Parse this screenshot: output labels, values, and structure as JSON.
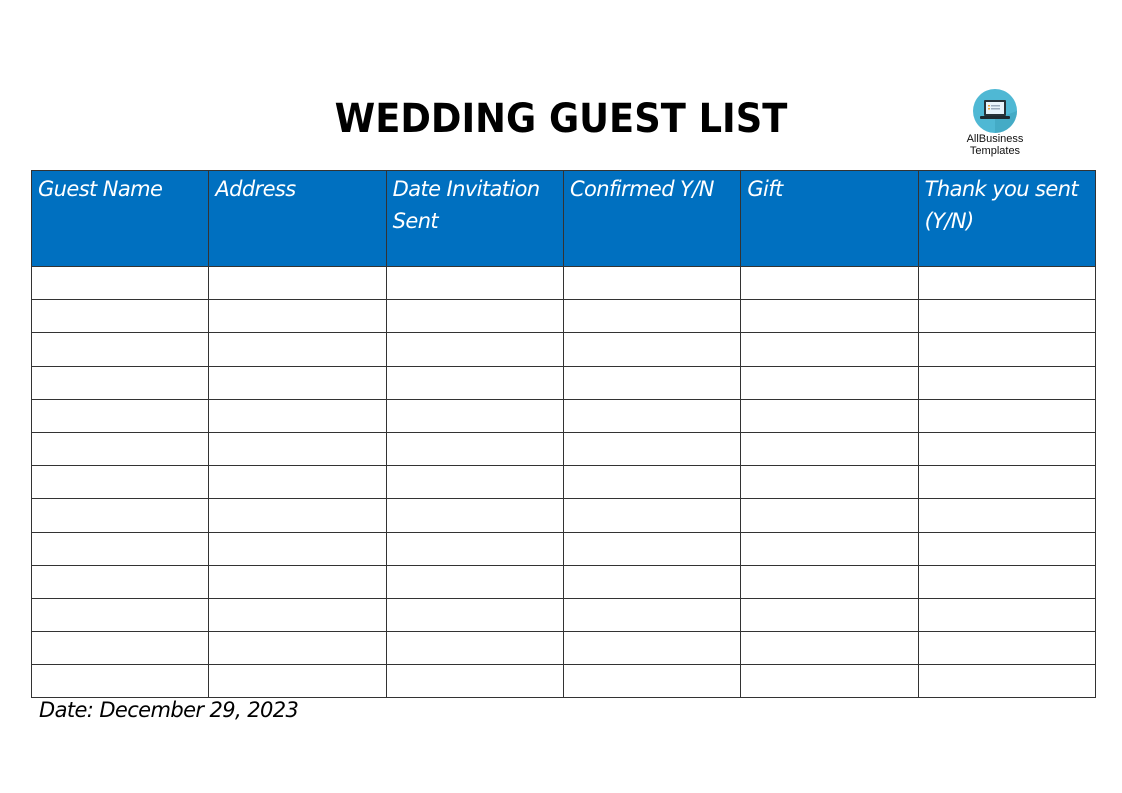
{
  "title": "WEDDING GUEST LIST",
  "logo": {
    "line1": "AllBusiness",
    "line2": "Templates",
    "icon": "laptop-icon"
  },
  "table": {
    "columns": [
      "Guest Name",
      "Address",
      "Date Invitation Sent",
      "Confirmed Y/N",
      "Gift",
      "Thank you sent (Y/N)"
    ],
    "empty_rows": 13
  },
  "footer": {
    "date": "Date: December 29, 2023"
  },
  "colors": {
    "header_bg": "#0070c0",
    "header_text": "#ffffff"
  }
}
